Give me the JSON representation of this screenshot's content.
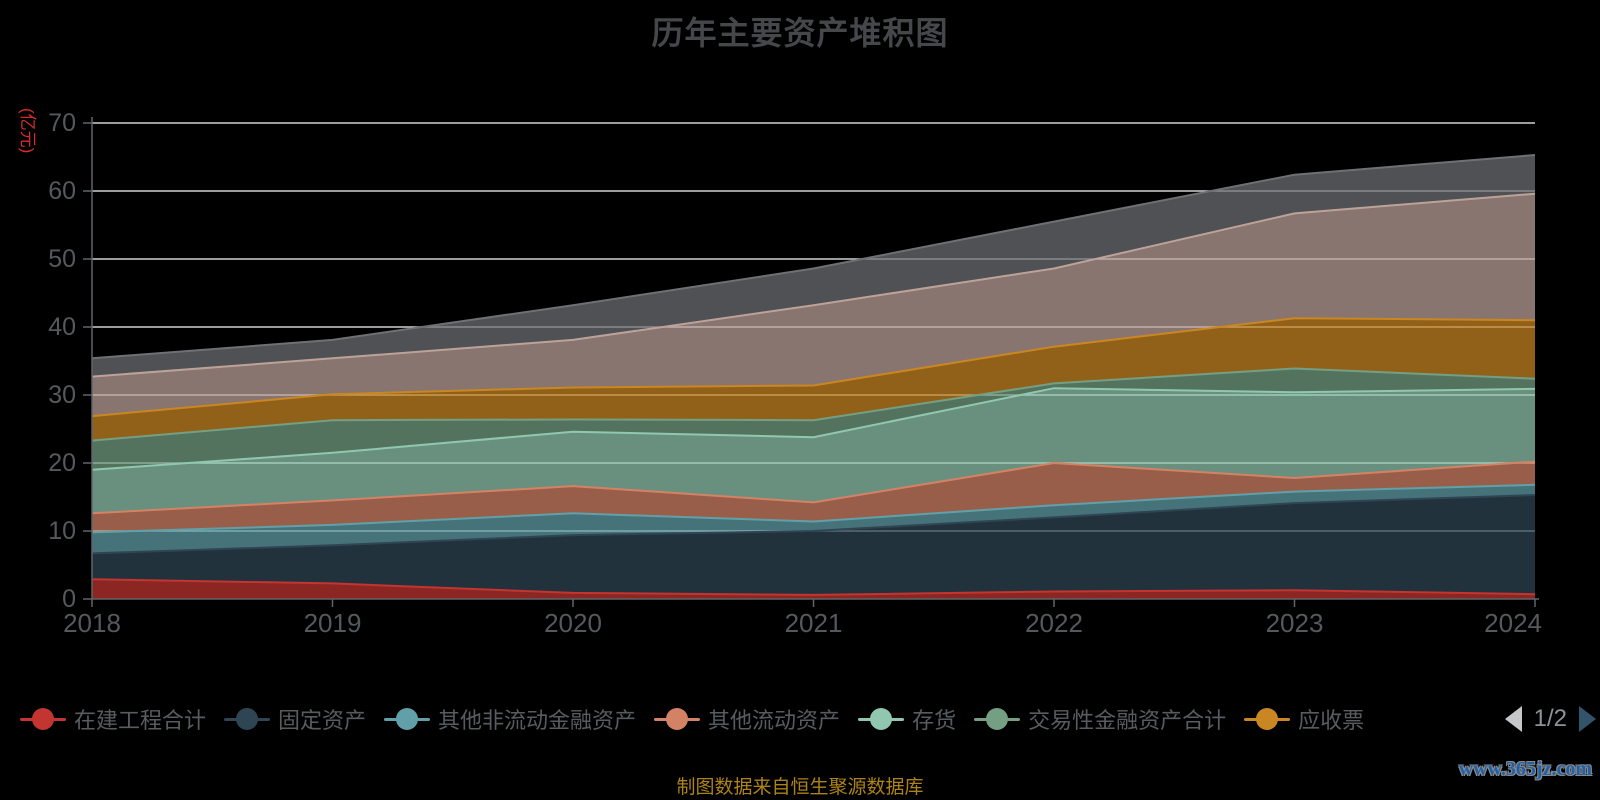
{
  "title": "历年主要资产堆积图",
  "colors": {
    "background": "#000000",
    "grid_line": "#d9dbdd",
    "axis_line": "#60646a",
    "axis_label": "#56595c",
    "title_text": "#45474a",
    "legend_text": "#595c5f",
    "pager_prev": "#c5c7c9",
    "pager_next": "#33536a",
    "pager_text": "#8f9296",
    "unit_label": "#d62c2c",
    "source_text": "#ad8317",
    "watermark_text": "#2060a8",
    "area_fill_opacity": 0.72
  },
  "y_axis": {
    "unit_label": "(亿元)",
    "ticks": [
      0,
      10,
      20,
      30,
      40,
      50,
      60,
      70
    ],
    "max": 70
  },
  "x_axis": {
    "categories": [
      "2018",
      "2019",
      "2020",
      "2021",
      "2022",
      "2023",
      "2024"
    ]
  },
  "legend": {
    "items": [
      {
        "label": "在建工程合计",
        "color": "#c23531"
      },
      {
        "label": "固定资产",
        "color": "#2f4554"
      },
      {
        "label": "其他非流动金融资产",
        "color": "#61a0a8"
      },
      {
        "label": "其他流动资产",
        "color": "#d48265"
      },
      {
        "label": "存货",
        "color": "#91c7ae"
      },
      {
        "label": "交易性金融资产合计",
        "color": "#749f83"
      },
      {
        "label": "应收票",
        "color": "#ca8622"
      }
    ],
    "pager": {
      "page_text": "1/2"
    }
  },
  "footer": {
    "source_note": "制图数据来自恒生聚源数据库",
    "watermark": "www.365jz.com"
  },
  "chart_data": {
    "type": "area",
    "stacked": true,
    "title": "历年主要资产堆积图",
    "unit": "亿元",
    "x": [
      "2018",
      "2019",
      "2020",
      "2021",
      "2022",
      "2023",
      "2024"
    ],
    "ylim": [
      0,
      70
    ],
    "grid": true,
    "legend_position": "bottom",
    "legend_pages": "1/2",
    "series": [
      {
        "name": "在建工程合计",
        "color": "#c23531",
        "legend_visible": true,
        "values": [
          2.9,
          2.3,
          0.9,
          0.6,
          1.1,
          1.3,
          0.7
        ]
      },
      {
        "name": "固定资产",
        "color": "#2f4554",
        "legend_visible": true,
        "values": [
          3.8,
          5.6,
          8.5,
          9.4,
          10.9,
          12.8,
          14.6
        ]
      },
      {
        "name": "其他非流动金融资产",
        "color": "#61a0a8",
        "legend_visible": true,
        "values": [
          3.1,
          3.0,
          3.2,
          1.4,
          1.8,
          1.7,
          1.5
        ]
      },
      {
        "name": "其他流动资产",
        "color": "#d48265",
        "legend_visible": true,
        "values": [
          2.8,
          3.6,
          4.0,
          2.8,
          6.2,
          2.0,
          3.4
        ]
      },
      {
        "name": "存货",
        "color": "#91c7ae",
        "legend_visible": true,
        "values": [
          6.4,
          7.0,
          8.0,
          9.6,
          11.0,
          12.6,
          10.7
        ]
      },
      {
        "name": "交易性金融资产合计",
        "color": "#749f83",
        "legend_visible": true,
        "values": [
          4.3,
          4.8,
          1.8,
          2.5,
          0.7,
          3.5,
          1.5
        ]
      },
      {
        "name": "应收票",
        "color": "#ca8622",
        "legend_visible": true,
        "values": [
          3.6,
          3.8,
          4.7,
          5.1,
          5.4,
          7.4,
          8.6
        ]
      },
      {
        "name": "",
        "color": "#bda29a",
        "legend_visible": false,
        "values": [
          5.8,
          5.3,
          7.0,
          11.8,
          11.5,
          15.4,
          18.6
        ]
      },
      {
        "name": "",
        "color": "#6e7074",
        "legend_visible": false,
        "values": [
          2.7,
          2.7,
          5.1,
          5.4,
          6.9,
          5.7,
          5.7
        ]
      }
    ],
    "stack_totals": [
      35.4,
      38.1,
      43.2,
      48.6,
      55.5,
      62.4,
      65.3
    ]
  }
}
